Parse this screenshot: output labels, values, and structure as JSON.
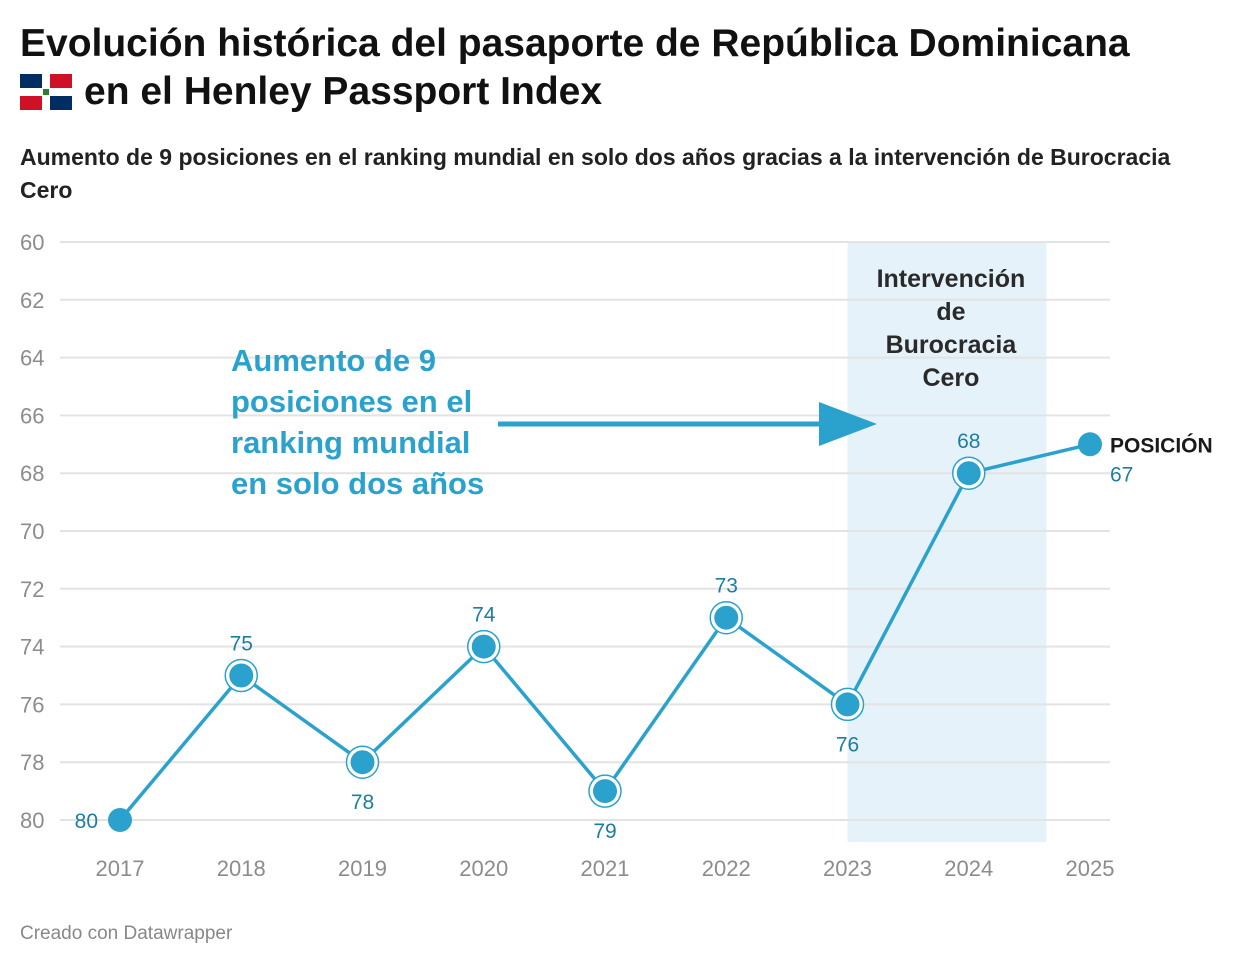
{
  "title_line1": "Evolución histórica del pasaporte de República Dominicana",
  "title_line2": "en el Henley Passport Index",
  "subtitle": "Aumento de 9 posiciones en el ranking mundial en solo dos años gracias a la intervención de Burocracia Cero",
  "credit": "Creado con Datawrapper",
  "colors": {
    "line": "#2ba2cd",
    "label": "#1d7ea3",
    "band": "#e6f2fa",
    "grid": "#e3e3e3",
    "flag_blue": "#002d62",
    "flag_red": "#ce1126"
  },
  "chart_data": {
    "type": "line",
    "x": [
      "2017",
      "2018",
      "2019",
      "2020",
      "2021",
      "2022",
      "2023",
      "2024",
      "2025"
    ],
    "series": [
      {
        "name": "POSICIÓN",
        "values": [
          80,
          75,
          78,
          74,
          79,
          73,
          76,
          68,
          67
        ]
      }
    ],
    "ylim": [
      60,
      80
    ],
    "y_inverted": true,
    "yticks": [
      60,
      62,
      64,
      66,
      68,
      70,
      72,
      74,
      76,
      78,
      80
    ],
    "grid": true,
    "value_labels": [
      "80",
      "75",
      "78",
      "74",
      "79",
      "73",
      "76",
      "68",
      "67"
    ],
    "highlight_band": {
      "from": "2023",
      "to": "2024",
      "label_lines": [
        "Intervención",
        "de",
        "Burocracia",
        "Cero"
      ]
    },
    "annotation": {
      "lines": [
        "Aumento de 9",
        "posiciones en el",
        "ranking mundial",
        "en solo dos años"
      ],
      "arrow_direction": "right"
    }
  }
}
